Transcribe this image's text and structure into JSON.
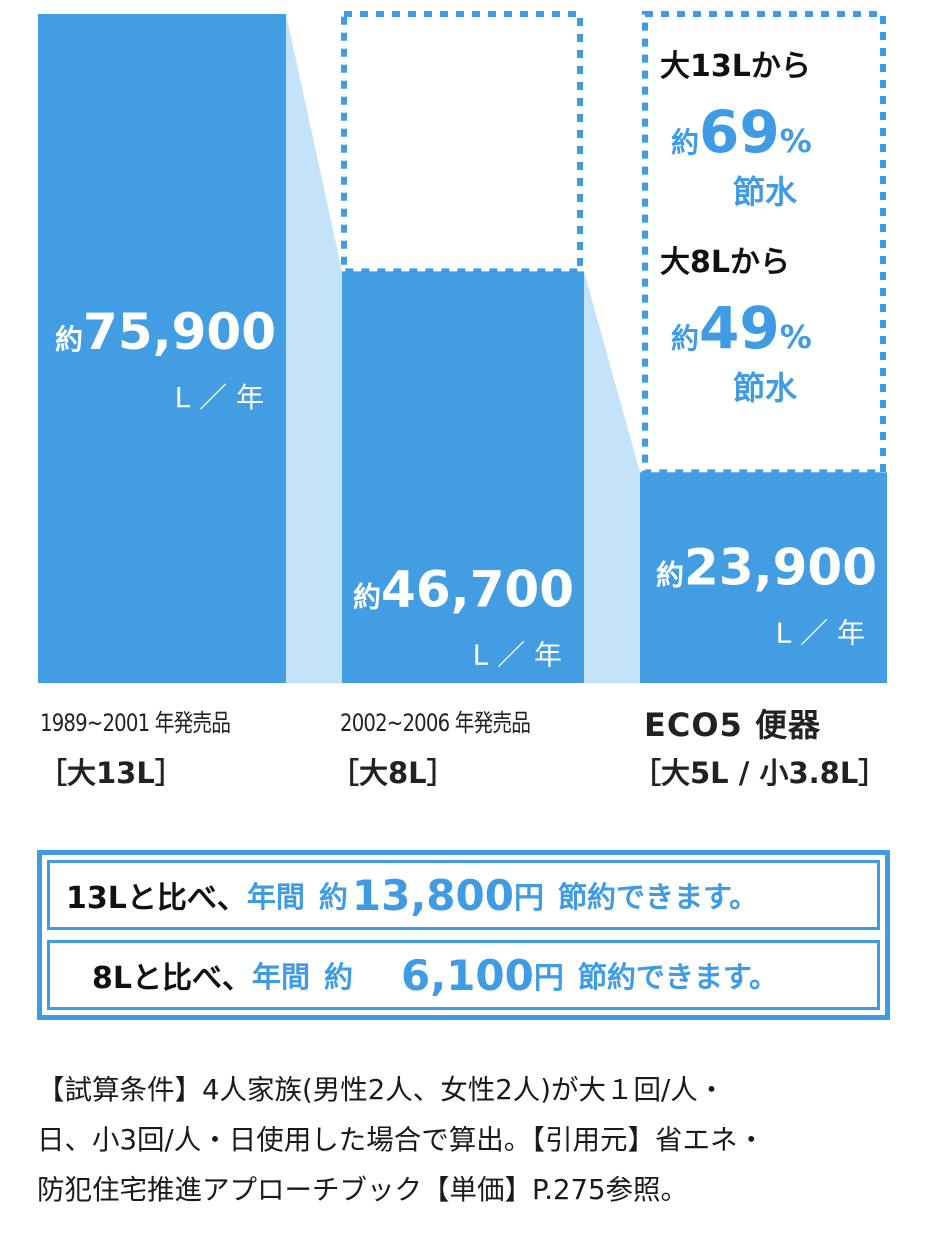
{
  "chart_data": {
    "type": "bar",
    "unit_prefix": "約",
    "unit": "L ／ 年",
    "categories": [
      {
        "years": "1989~2001 年発売品",
        "spec": "［大13L］"
      },
      {
        "years": "2002~2006 年発売品",
        "spec": "［大8L］"
      },
      {
        "name": "ECO5 便器",
        "spec": "［大5L / 小3.8L］"
      }
    ],
    "values": [
      75900,
      46700,
      23900
    ],
    "value_labels": [
      "75,900",
      "46,700",
      "23,900"
    ],
    "ylim": [
      0,
      75900
    ],
    "annotations": [
      {
        "from": "大13Lから",
        "prefix": "約",
        "percent": "69",
        "pct_sign": "%",
        "suffix": "節水"
      },
      {
        "from": "大8Lから",
        "prefix": "約",
        "percent": "49",
        "pct_sign": "%",
        "suffix": "節水"
      }
    ],
    "colors": {
      "bar": "#429de3",
      "connector": "#c4e2f8",
      "dotted": "#3f9be3"
    }
  },
  "savings": [
    {
      "compare": "13Lと比べ、",
      "period": "年間",
      "prefix": "約",
      "amount": "13,800",
      "yen": "円",
      "suffix": "節約できます。"
    },
    {
      "compare": "8Lと比べ、",
      "period": "年間",
      "prefix": "約",
      "amount": "6,100",
      "yen": "円",
      "suffix": "節約できます。"
    }
  ],
  "notes": [
    "【試算条件】4人家族(男性2人、女性2人)が大１回/人・",
    "日、小3回/人・日使用した場合で算出。【引用元】省エネ・",
    "防犯住宅推進アプローチブック【単価】P.275参照。"
  ]
}
